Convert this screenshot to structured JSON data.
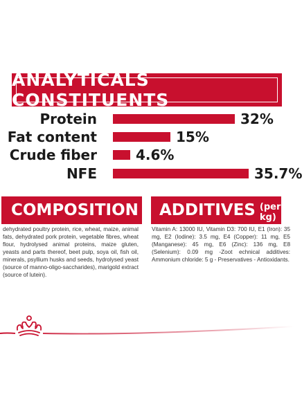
{
  "header": {
    "title": "ANALYTICALS CONSTITUENTS"
  },
  "constituents": [
    {
      "label": "Protein",
      "value": "32%",
      "level": 32
    },
    {
      "label": "Fat content",
      "value": "15%",
      "level": 15
    },
    {
      "label": "Crude fiber",
      "value": "4.6%",
      "level": 4.6
    },
    {
      "label": "NFE",
      "value": "35.7%",
      "level": 35.7
    }
  ],
  "composition": {
    "title": "COMPOSITION",
    "text": "dehydrated poultry protein, rice, wheat, maize, animal fats, dehydrated pork protein, vegetable fibres, wheat flour, hydrolysed animal proteins, maize gluten, yeasts and parts thereof, beet pulp, soya oil, fish oil, minerals, psyllium husks and seeds, hydrolysed yeast (source of manno-oligo-saccharides), marigold extract (source of lutein)."
  },
  "additives": {
    "title": "ADDITIVES",
    "subtitle": "(per kg)",
    "text": "Vitamin A: 13000 IU, Vitamin D3: 700 IU, E1 (Iron): 35 mg, E2 (Iodine): 3.5 mg, E4 (Copper): 11 mg, E5 (Manganese): 45 mg, E6 (Zinc): 136 mg, E8 (Selenium): 0.09 mg -Zoot echnical additives: Ammonium chloride: 5 g - Preservatives - Antioxidants."
  },
  "colors": {
    "brand": "#c8102e",
    "text": "#1a1a1a"
  },
  "icons": {
    "logo": "royal-crown-icon"
  }
}
